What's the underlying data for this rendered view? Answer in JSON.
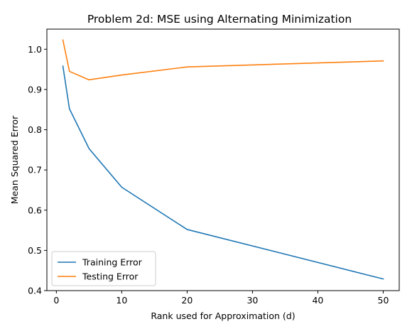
{
  "chart_data": {
    "type": "line",
    "title": "Problem 2d: MSE using Alternating Minimization",
    "xlabel": "Rank used for Approximation (d)",
    "ylabel": "Mean Squared Error",
    "xlim": [
      -1.45,
      52.45
    ],
    "ylim": [
      0.4,
      1.05
    ],
    "xticks": [
      0,
      10,
      20,
      30,
      40,
      50
    ],
    "yticks": [
      0.4,
      0.5,
      0.6,
      0.7,
      0.8,
      0.9,
      1.0
    ],
    "ytick_labels": [
      "0.4",
      "0.5",
      "0.6",
      "0.7",
      "0.8",
      "0.9",
      "1.0"
    ],
    "grid": false,
    "legend_position": "lower-left",
    "x": [
      1,
      2,
      5,
      10,
      20,
      50
    ],
    "series": [
      {
        "name": "Training Error",
        "color": "#1f77b4",
        "values": [
          0.958,
          0.852,
          0.753,
          0.657,
          0.552,
          0.429
        ]
      },
      {
        "name": "Testing Error",
        "color": "#ff7f0e",
        "values": [
          1.023,
          0.945,
          0.924,
          0.936,
          0.956,
          0.971
        ]
      }
    ]
  }
}
